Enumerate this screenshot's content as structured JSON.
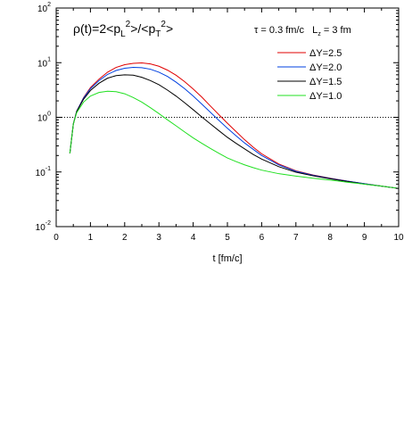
{
  "chart_data": {
    "type": "line",
    "title_parts": {
      "rho": "ρ",
      "open": "(t)=2<p",
      "sub_l": "L",
      "sup1": "2",
      "mid": ">/<p",
      "sub_t": "T",
      "sup2": "2",
      "close": ">"
    },
    "annotation_parts": {
      "tau": "τ",
      "tau_text": " = 0.3 fm/c   L",
      "sub_z": "z",
      "l_text": " = 3 fm"
    },
    "xlabel": "t [fm/c]",
    "ylabel": "",
    "xlim": [
      0,
      10
    ],
    "ylim": [
      0.01,
      100
    ],
    "yscale": "log",
    "x_ticks": [
      "0",
      "1",
      "2",
      "3",
      "4",
      "5",
      "6",
      "7",
      "8",
      "9",
      "10"
    ],
    "y_ticks": [
      {
        "base": "10",
        "exp": "-2"
      },
      {
        "base": "10",
        "exp": "-1"
      },
      {
        "base": "10",
        "exp": "0"
      },
      {
        "base": "10",
        "exp": "1"
      },
      {
        "base": "10",
        "exp": "2"
      }
    ],
    "grid": false,
    "legend_position": "top-right",
    "reference_line": {
      "y": 1,
      "style": "dotted"
    },
    "series": [
      {
        "name": "ΔY=2.5",
        "color": "#e00000",
        "x": [
          0.4,
          0.5,
          0.6,
          0.8,
          1.0,
          1.25,
          1.5,
          1.75,
          2.0,
          2.25,
          2.5,
          2.75,
          3.0,
          3.25,
          3.5,
          3.75,
          4.0,
          4.25,
          4.5,
          4.75,
          5.0,
          5.25,
          5.5,
          5.75,
          6.0,
          6.5,
          7.0,
          7.5,
          8.0,
          8.5,
          9.0,
          9.5,
          10.0
        ],
        "y": [
          0.22,
          0.75,
          1.3,
          2.3,
          3.5,
          5.0,
          6.7,
          8.2,
          9.2,
          9.7,
          9.9,
          9.5,
          8.6,
          7.3,
          5.9,
          4.5,
          3.3,
          2.35,
          1.62,
          1.12,
          0.78,
          0.55,
          0.39,
          0.285,
          0.215,
          0.14,
          0.105,
          0.088,
          0.077,
          0.068,
          0.061,
          0.055,
          0.05
        ]
      },
      {
        "name": "ΔY=2.0",
        "color": "#0040e0",
        "x": [
          0.4,
          0.5,
          0.6,
          0.8,
          1.0,
          1.25,
          1.5,
          1.75,
          2.0,
          2.25,
          2.5,
          2.75,
          3.0,
          3.25,
          3.5,
          3.75,
          4.0,
          4.25,
          4.5,
          4.75,
          5.0,
          5.25,
          5.5,
          5.75,
          6.0,
          6.5,
          7.0,
          7.5,
          8.0,
          8.5,
          9.0,
          9.5,
          10.0
        ],
        "y": [
          0.22,
          0.75,
          1.3,
          2.25,
          3.35,
          4.7,
          6.1,
          7.2,
          7.9,
          8.2,
          8.1,
          7.6,
          6.7,
          5.6,
          4.4,
          3.35,
          2.45,
          1.75,
          1.24,
          0.88,
          0.63,
          0.46,
          0.34,
          0.26,
          0.2,
          0.135,
          0.103,
          0.087,
          0.076,
          0.068,
          0.061,
          0.055,
          0.05
        ]
      },
      {
        "name": "ΔY=1.5",
        "color": "#000000",
        "x": [
          0.4,
          0.5,
          0.6,
          0.8,
          1.0,
          1.25,
          1.5,
          1.75,
          2.0,
          2.25,
          2.5,
          2.75,
          3.0,
          3.25,
          3.5,
          3.75,
          4.0,
          4.25,
          4.5,
          4.75,
          5.0,
          5.25,
          5.5,
          5.75,
          6.0,
          6.5,
          7.0,
          7.5,
          8.0,
          8.5,
          9.0,
          9.5,
          10.0
        ],
        "y": [
          0.22,
          0.75,
          1.28,
          2.15,
          3.1,
          4.2,
          5.2,
          5.8,
          6.0,
          5.9,
          5.4,
          4.7,
          3.95,
          3.15,
          2.45,
          1.85,
          1.38,
          1.02,
          0.76,
          0.57,
          0.43,
          0.335,
          0.265,
          0.21,
          0.172,
          0.125,
          0.099,
          0.085,
          0.075,
          0.067,
          0.06,
          0.055,
          0.05
        ]
      },
      {
        "name": "ΔY=1.0",
        "color": "#20e020",
        "x": [
          0.4,
          0.5,
          0.6,
          0.8,
          1.0,
          1.25,
          1.5,
          1.75,
          2.0,
          2.25,
          2.5,
          2.75,
          3.0,
          3.25,
          3.5,
          3.75,
          4.0,
          4.25,
          4.5,
          4.75,
          5.0,
          5.25,
          5.5,
          5.75,
          6.0,
          6.5,
          7.0,
          7.5,
          8.0,
          8.5,
          9.0,
          9.5,
          10.0
        ],
        "y": [
          0.22,
          0.75,
          1.22,
          1.9,
          2.45,
          2.85,
          3.0,
          2.95,
          2.7,
          2.3,
          1.9,
          1.5,
          1.17,
          0.9,
          0.7,
          0.54,
          0.42,
          0.335,
          0.27,
          0.22,
          0.18,
          0.155,
          0.135,
          0.12,
          0.108,
          0.093,
          0.084,
          0.077,
          0.071,
          0.065,
          0.06,
          0.055,
          0.05
        ]
      }
    ]
  }
}
